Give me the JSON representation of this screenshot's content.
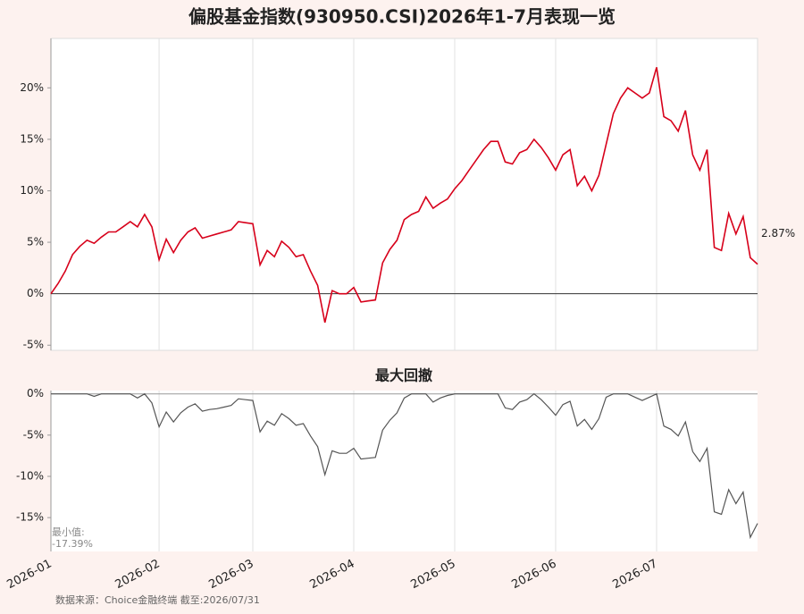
{
  "chart_data": [
    {
      "type": "line",
      "title": "偏股基金指数(930950.CSI)2026年1-7月表现一览",
      "ylim": [
        -5.5,
        24.8
      ],
      "yticks": [
        {
          "value": -5,
          "label": "-5%"
        },
        {
          "value": 0,
          "label": "0%"
        },
        {
          "value": 5,
          "label": "5%"
        },
        {
          "value": 10,
          "label": "10%"
        },
        {
          "value": 15,
          "label": "15%"
        },
        {
          "value": 20,
          "label": "20%"
        }
      ],
      "color": "#d7001a",
      "values": [
        0,
        1.0,
        2.2,
        3.8,
        4.6,
        5.2,
        4.9,
        5.5,
        6.0,
        6.0,
        6.5,
        7.0,
        6.5,
        7.7,
        6.5,
        3.3,
        5.3,
        4.0,
        5.2,
        6.0,
        6.4,
        5.4,
        5.6,
        5.8,
        6.0,
        6.2,
        7.0,
        6.9,
        6.8,
        2.8,
        4.2,
        3.6,
        5.1,
        4.5,
        3.6,
        3.8,
        2.2,
        0.8,
        -2.8,
        0.3,
        0.0,
        0.0,
        0.6,
        -0.8,
        -0.7,
        -0.6,
        3.0,
        4.3,
        5.2,
        7.2,
        7.7,
        8.0,
        9.4,
        8.3,
        8.8,
        9.2,
        10.2,
        11.0,
        12.0,
        13.0,
        14.0,
        14.8,
        14.8,
        12.8,
        12.6,
        13.7,
        14.0,
        15.0,
        14.2,
        13.2,
        12.0,
        13.5,
        14.0,
        10.5,
        11.4,
        10.0,
        11.5,
        14.5,
        17.5,
        19.0,
        20.0,
        19.5,
        19.0,
        19.5,
        22.0,
        17.2,
        16.8,
        15.8,
        17.8,
        13.5,
        12.0,
        14.0,
        4.5,
        4.2,
        7.8,
        5.8,
        7.5,
        3.5,
        2.87
      ],
      "value_labels": [
        null,
        null,
        null,
        null,
        null,
        null,
        null,
        null,
        null,
        null,
        null,
        null,
        null,
        null,
        null,
        null,
        null,
        null,
        null,
        null,
        null,
        null,
        null,
        null,
        null,
        null,
        null,
        null,
        null,
        null,
        null,
        null,
        null,
        null,
        null,
        null,
        null,
        null,
        null,
        null,
        null,
        null,
        null,
        null,
        null,
        null,
        null,
        null,
        null,
        null,
        null,
        null,
        null,
        null,
        null,
        null,
        null,
        null,
        null,
        null,
        null,
        null,
        null,
        null,
        null,
        null,
        null,
        null,
        null,
        null,
        null,
        null,
        null,
        null,
        null,
        null,
        null,
        null,
        null,
        null,
        null,
        null,
        null,
        null,
        null,
        null,
        null,
        null,
        null,
        null,
        null,
        null,
        null,
        null,
        null,
        null,
        null,
        null,
        "2.87%"
      ]
    },
    {
      "type": "line",
      "title": "最大回撤",
      "ylim": [
        -19.1,
        0.4
      ],
      "yticks": [
        {
          "value": 0,
          "label": "0%"
        },
        {
          "value": -5,
          "label": "-5%"
        },
        {
          "value": -10,
          "label": "-10%"
        },
        {
          "value": -15,
          "label": "-15%"
        }
      ],
      "color": "#555555",
      "categories": [
        "2026-01",
        null,
        null,
        null,
        null,
        null,
        null,
        null,
        null,
        null,
        null,
        null,
        null,
        null,
        null,
        "2026-02",
        null,
        null,
        null,
        null,
        null,
        null,
        null,
        null,
        null,
        null,
        null,
        null,
        "2026-03",
        null,
        null,
        null,
        null,
        null,
        null,
        null,
        null,
        null,
        null,
        null,
        null,
        null,
        "2026-04",
        null,
        null,
        null,
        null,
        null,
        null,
        null,
        null,
        null,
        null,
        null,
        null,
        null,
        "2026-05",
        null,
        null,
        null,
        null,
        null,
        null,
        null,
        null,
        null,
        null,
        null,
        null,
        null,
        "2026-06",
        null,
        null,
        null,
        null,
        null,
        null,
        null,
        null,
        null,
        null,
        null,
        null,
        null,
        "2026-07",
        null,
        null,
        null,
        null,
        null,
        null,
        null,
        null,
        null,
        null,
        null,
        null,
        null,
        null
      ],
      "values": [
        0,
        0,
        0,
        0,
        0,
        0,
        -0.3,
        0,
        0,
        0,
        0,
        0,
        -0.5,
        0,
        -1.1,
        -4.0,
        -2.2,
        -3.4,
        -2.3,
        -1.6,
        -1.2,
        -2.1,
        -1.9,
        -1.8,
        -1.6,
        -1.4,
        -0.6,
        -0.7,
        -0.8,
        -4.6,
        -3.3,
        -3.8,
        -2.4,
        -3.0,
        -3.8,
        -3.6,
        -5.1,
        -6.4,
        -9.8,
        -6.9,
        -7.2,
        -7.2,
        -6.6,
        -7.9,
        -7.8,
        -7.7,
        -4.4,
        -3.2,
        -2.3,
        -0.5,
        0,
        0,
        0,
        -1.0,
        -0.5,
        -0.2,
        0,
        0,
        0,
        0,
        0,
        0,
        0,
        -1.7,
        -1.9,
        -1.0,
        -0.7,
        0,
        -0.7,
        -1.6,
        -2.6,
        -1.3,
        -0.9,
        -3.9,
        -3.1,
        -4.3,
        -3.0,
        -0.4,
        0,
        0,
        0,
        -0.4,
        -0.8,
        -0.4,
        0,
        -3.9,
        -4.3,
        -5.1,
        -3.4,
        -7.0,
        -8.2,
        -6.6,
        -14.3,
        -14.6,
        -11.6,
        -13.3,
        -11.9,
        -17.39,
        -15.7
      ],
      "annotation": "最小值:",
      "value_labels": [
        null,
        null,
        null,
        null,
        null,
        null,
        null,
        null,
        null,
        null,
        null,
        null,
        null,
        null,
        null,
        null,
        null,
        null,
        null,
        null,
        null,
        null,
        null,
        null,
        null,
        null,
        null,
        null,
        null,
        null,
        null,
        null,
        null,
        null,
        null,
        null,
        null,
        null,
        null,
        null,
        null,
        null,
        null,
        null,
        null,
        null,
        null,
        null,
        null,
        null,
        null,
        null,
        null,
        null,
        null,
        null,
        null,
        null,
        null,
        null,
        null,
        null,
        null,
        null,
        null,
        null,
        null,
        null,
        null,
        null,
        null,
        null,
        null,
        null,
        null,
        null,
        null,
        null,
        null,
        null,
        null,
        null,
        null,
        null,
        null,
        null,
        null,
        null,
        null,
        null,
        null,
        null,
        null,
        null,
        null,
        null,
        null,
        "-17.39%",
        null
      ]
    }
  ],
  "footer": "数据来源：Choice金融终端 截至:2026/07/31"
}
